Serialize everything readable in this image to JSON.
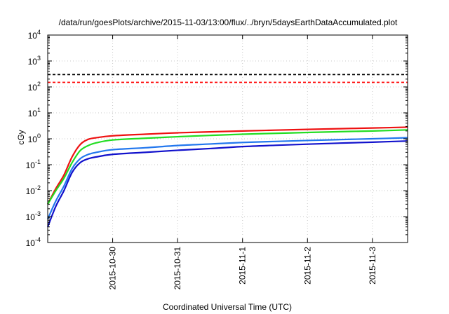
{
  "chart_data": {
    "type": "line",
    "title": "/data/run/goesPlots/archive/2015-11-03/13:00/flux/../bryn/5daysEarthDataAccumulated.plot",
    "xlabel": "Coordinated Universal Time (UTC)",
    "ylabel": "cGy",
    "y_scale": "log",
    "ylim": [
      0.0001,
      10000
    ],
    "xlim": [
      "2015-10-29 00:00",
      "2015-11-03 13:00"
    ],
    "y_ticks": [
      {
        "base": "10",
        "exp": "-4"
      },
      {
        "base": "10",
        "exp": "-3"
      },
      {
        "base": "10",
        "exp": "-2"
      },
      {
        "base": "10",
        "exp": "-1"
      },
      {
        "base": "10",
        "exp": "0"
      },
      {
        "base": "10",
        "exp": "1"
      },
      {
        "base": "10",
        "exp": "2"
      },
      {
        "base": "10",
        "exp": "3"
      },
      {
        "base": "10",
        "exp": "4"
      }
    ],
    "x_ticks": [
      "2015-10-30",
      "2015-10-31",
      "2015-11-1",
      "2015-11-2",
      "2015-11-3"
    ],
    "x_tick_values": [
      "2015-10-30",
      "2015-10-31",
      "2015-11-01",
      "2015-11-02",
      "2015-11-03"
    ],
    "grid": true,
    "thresholds": [
      {
        "value": 300,
        "color": "#000000",
        "style": "dashed"
      },
      {
        "value": 150,
        "color": "#ff0000",
        "style": "dashed"
      }
    ],
    "series": [
      {
        "color": "#ee1111",
        "x": [
          "2015-10-29 00:00",
          "2015-10-29 03:00",
          "2015-10-29 06:00",
          "2015-10-29 09:00",
          "2015-10-29 12:00",
          "2015-10-29 15:00",
          "2015-10-29 18:00",
          "2015-10-30 00:00",
          "2015-10-30 12:00",
          "2015-10-31 00:00",
          "2015-10-31 12:00",
          "2015-11-01 00:00",
          "2015-11-01 12:00",
          "2015-11-02 00:00",
          "2015-11-02 12:00",
          "2015-11-03 00:00",
          "2015-11-03 13:00"
        ],
        "y": [
          0.003,
          0.012,
          0.04,
          0.2,
          0.6,
          0.95,
          1.1,
          1.3,
          1.5,
          1.7,
          1.85,
          2.0,
          2.15,
          2.3,
          2.45,
          2.6,
          2.8
        ]
      },
      {
        "color": "#22dd22",
        "x": [
          "2015-10-29 00:00",
          "2015-10-29 03:00",
          "2015-10-29 06:00",
          "2015-10-29 09:00",
          "2015-10-29 12:00",
          "2015-10-29 15:00",
          "2015-10-29 18:00",
          "2015-10-30 00:00",
          "2015-10-30 12:00",
          "2015-10-31 00:00",
          "2015-10-31 12:00",
          "2015-11-01 00:00",
          "2015-11-01 12:00",
          "2015-11-02 00:00",
          "2015-11-02 12:00",
          "2015-11-03 00:00",
          "2015-11-03 13:00"
        ],
        "y": [
          0.003,
          0.01,
          0.03,
          0.12,
          0.35,
          0.55,
          0.7,
          0.9,
          1.05,
          1.2,
          1.35,
          1.5,
          1.62,
          1.75,
          1.88,
          2.0,
          2.2
        ]
      },
      {
        "color": "#2277ee",
        "x": [
          "2015-10-29 00:00",
          "2015-10-29 03:00",
          "2015-10-29 06:00",
          "2015-10-29 09:00",
          "2015-10-29 12:00",
          "2015-10-29 15:00",
          "2015-10-29 18:00",
          "2015-10-30 00:00",
          "2015-10-30 12:00",
          "2015-10-31 00:00",
          "2015-10-31 12:00",
          "2015-11-01 00:00",
          "2015-11-01 12:00",
          "2015-11-02 00:00",
          "2015-11-02 12:00",
          "2015-11-03 00:00",
          "2015-11-03 13:00"
        ],
        "y": [
          0.0008,
          0.004,
          0.015,
          0.07,
          0.17,
          0.25,
          0.3,
          0.38,
          0.45,
          0.55,
          0.63,
          0.72,
          0.79,
          0.86,
          0.93,
          1.0,
          1.1
        ]
      },
      {
        "color": "#1111cc",
        "x": [
          "2015-10-29 00:00",
          "2015-10-29 03:00",
          "2015-10-29 06:00",
          "2015-10-29 09:00",
          "2015-10-29 12:00",
          "2015-10-29 15:00",
          "2015-10-29 18:00",
          "2015-10-30 00:00",
          "2015-10-30 12:00",
          "2015-10-31 00:00",
          "2015-10-31 12:00",
          "2015-11-01 00:00",
          "2015-11-01 12:00",
          "2015-11-02 00:00",
          "2015-11-02 12:00",
          "2015-11-03 00:00",
          "2015-11-03 13:00"
        ],
        "y": [
          0.0004,
          0.0025,
          0.01,
          0.05,
          0.12,
          0.17,
          0.2,
          0.25,
          0.3,
          0.36,
          0.42,
          0.5,
          0.56,
          0.62,
          0.68,
          0.74,
          0.82
        ]
      }
    ]
  }
}
